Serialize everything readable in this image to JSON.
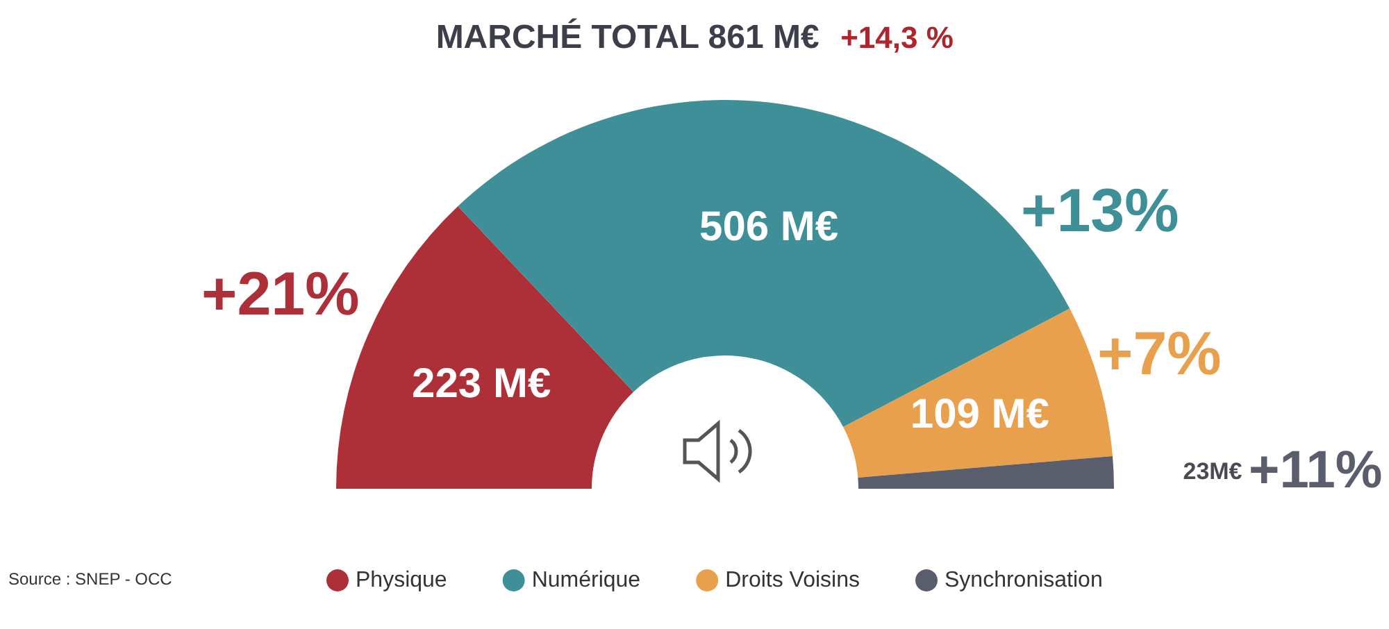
{
  "chart_data": {
    "type": "donut",
    "title": "MARCHÉ TOTAL 861 M€",
    "subtitle": "+14,3 %",
    "categories": [
      "Physique",
      "Numérique",
      "Droits Voisins",
      "Synchronisation"
    ],
    "values": [
      223,
      506,
      109,
      23
    ],
    "colors": [
      "#ad3038",
      "#3f8f98",
      "#e8a04c",
      "#5a5d6b"
    ],
    "value_labels": [
      "223 M€",
      "506 M€",
      "109 M€",
      "23M€"
    ],
    "annotations": [
      "+21%",
      "+13%",
      "+7%",
      "+11%",
      "Source : SNEP - OCC"
    ],
    "legend": "bottom"
  }
}
